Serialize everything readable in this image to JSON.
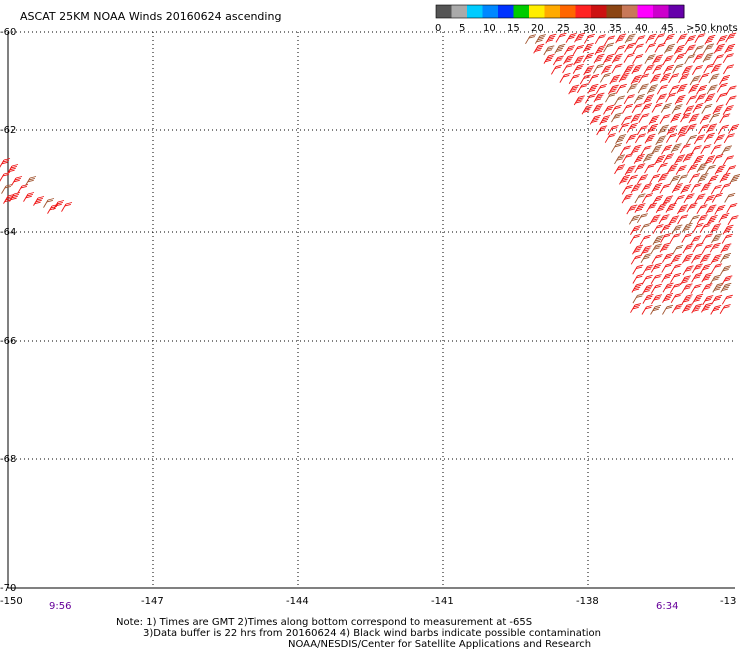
{
  "title": "ASCAT 25KM NOAA Winds 20160624 ascending",
  "legend": {
    "colors": [
      "#555555",
      "#aaaaaa",
      "#00ccff",
      "#0088ff",
      "#0033ff",
      "#00cc00",
      "#ffee00",
      "#ffaa00",
      "#ff6600",
      "#ff2222",
      "#cc1111",
      "#8b4513",
      "#c87858",
      "#ff00ff",
      "#cc00cc",
      "#6600aa"
    ],
    "labels": [
      "0",
      "5",
      "10",
      "15",
      "20",
      "25",
      "30",
      "35",
      "40",
      "45",
      ">50 knots"
    ]
  },
  "axes": {
    "lat_labels": [
      "-60",
      "-62",
      "-64",
      "-66",
      "-68",
      "-70"
    ],
    "lon_labels": [
      "-150",
      "-147",
      "-144",
      "-141",
      "-138",
      "-13"
    ]
  },
  "times": {
    "left": "9:56",
    "right": "6:34"
  },
  "notes": [
    "Note: 1) Times are GMT 2)Times along bottom correspond to measurement at -65S",
    "3)Data buffer is 22 hrs from 20160624 4) Black wind barbs indicate possible contamination",
    "NOAA/NESDIS/Center for Satellite Applications and Research"
  ],
  "colors": {
    "barb_red": "#ee1111",
    "barb_brown": "#a0522d",
    "grid": "#000000",
    "time_text": "#660099"
  }
}
